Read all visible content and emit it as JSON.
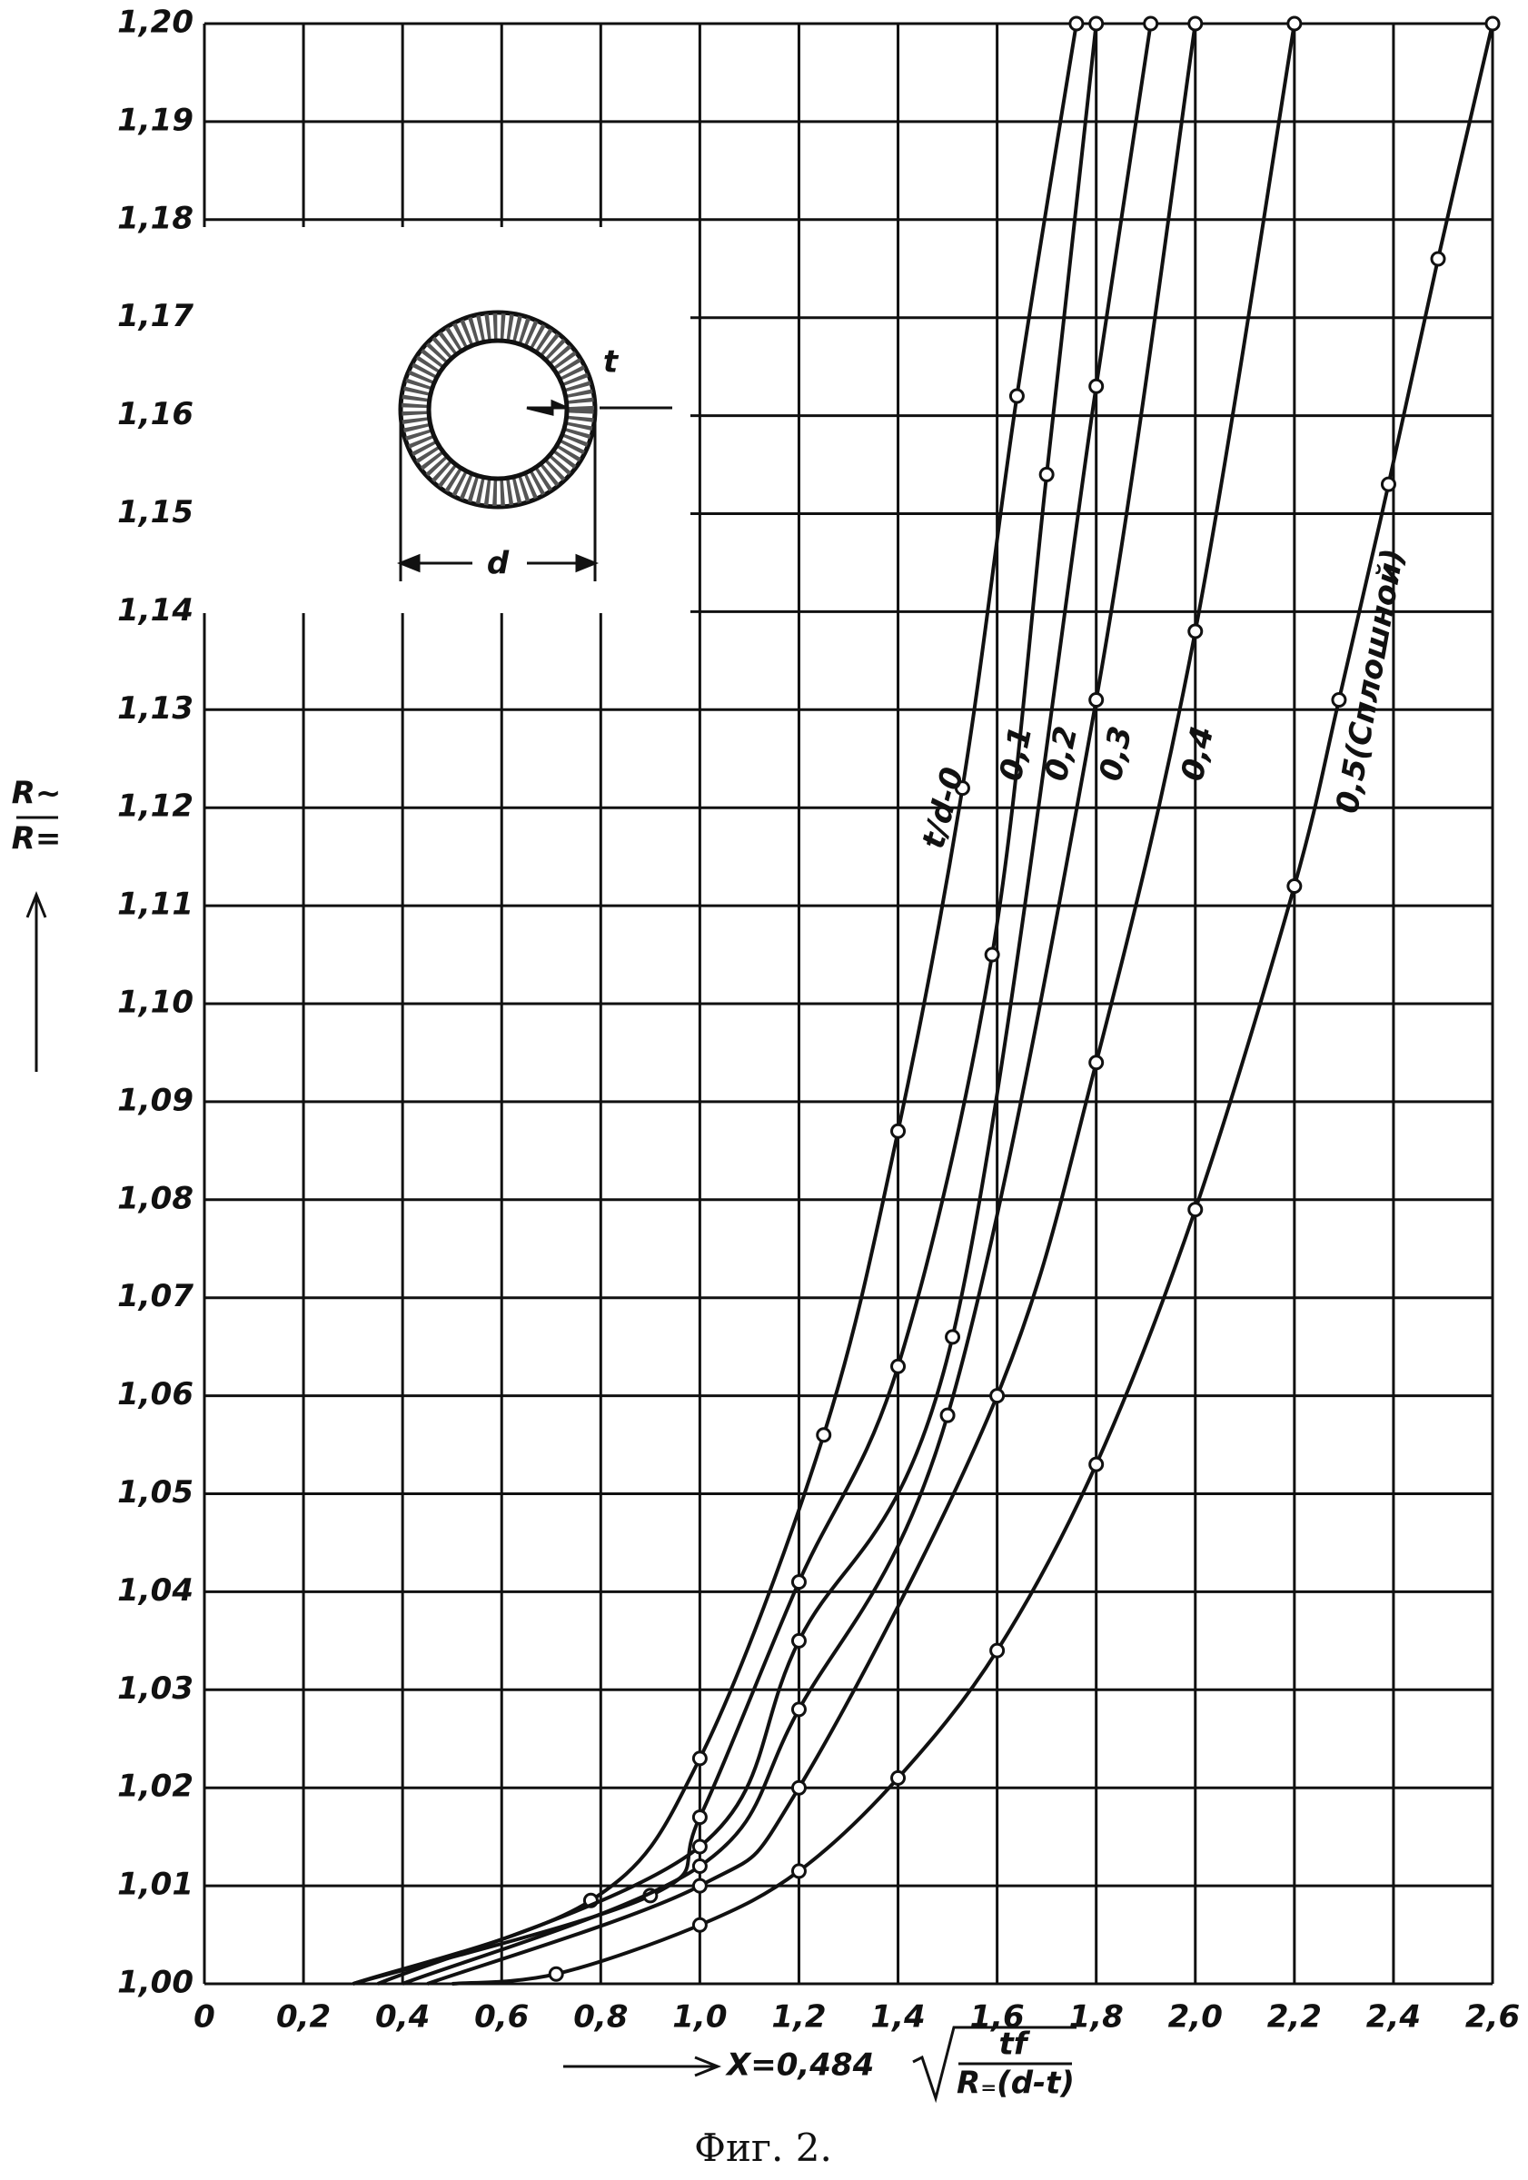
{
  "chart_data": {
    "type": "line",
    "caption": "Фиг. 2.",
    "y_label": {
      "numerator": "R~",
      "denominator": "R="
    },
    "x_label": {
      "prefix": "X=0,484",
      "numerator": "tf",
      "denominator": "R₌(d-t)"
    },
    "inset": {
      "thickness": "t",
      "diameter": "d"
    },
    "color": "#111111",
    "grid": true,
    "xlim": [
      0,
      2.6
    ],
    "xticks": [
      0,
      {
        "value": 0.2,
        "label": "0,2"
      },
      {
        "value": 0.4,
        "label": "0,4"
      },
      {
        "value": 0.6,
        "label": "0,6"
      },
      {
        "value": 0.8,
        "label": "0,8"
      },
      {
        "value": 1.0,
        "label": "1,0"
      },
      {
        "value": 1.2,
        "label": "1,2"
      },
      {
        "value": 1.4,
        "label": "1,4"
      },
      {
        "value": 1.6,
        "label": "1,6"
      },
      {
        "value": 1.8,
        "label": "1,8"
      },
      {
        "value": 2.0,
        "label": "2,0"
      },
      {
        "value": 2.2,
        "label": "2,2"
      },
      {
        "value": 2.4,
        "label": "2,4"
      },
      {
        "value": 2.6,
        "label": "2,6"
      }
    ],
    "ylim": [
      1.0,
      1.2
    ],
    "yticks": [
      {
        "value": 1.0,
        "label": "1,00"
      },
      {
        "value": 1.01,
        "label": "1,01"
      },
      {
        "value": 1.02,
        "label": "1,02"
      },
      {
        "value": 1.03,
        "label": "1,03"
      },
      {
        "value": 1.04,
        "label": "1,04"
      },
      {
        "value": 1.05,
        "label": "1,05"
      },
      {
        "value": 1.06,
        "label": "1,06"
      },
      {
        "value": 1.07,
        "label": "1,07"
      },
      {
        "value": 1.08,
        "label": "1,08"
      },
      {
        "value": 1.09,
        "label": "1,09"
      },
      {
        "value": 1.1,
        "label": "1,10"
      },
      {
        "value": 1.11,
        "label": "1,11"
      },
      {
        "value": 1.12,
        "label": "1,12"
      },
      {
        "value": 1.13,
        "label": "1,13"
      },
      {
        "value": 1.14,
        "label": "1,14"
      },
      {
        "value": 1.15,
        "label": "1,15"
      },
      {
        "value": 1.16,
        "label": "1,16"
      },
      {
        "value": 1.17,
        "label": "1,17"
      },
      {
        "value": 1.18,
        "label": "1,18"
      },
      {
        "value": 1.19,
        "label": "1,19"
      },
      {
        "value": 1.2,
        "label": "1,20"
      }
    ],
    "series": [
      {
        "name": "t/d-0",
        "x": [
          0.3,
          0.78,
          1.0,
          1.25,
          1.4,
          1.53,
          1.64,
          1.76
        ],
        "values": [
          1.0,
          1.0085,
          1.023,
          1.056,
          1.087,
          1.122,
          1.162,
          1.2
        ]
      },
      {
        "name": "0,1",
        "x": [
          0.3,
          0.9,
          1.0,
          1.2,
          1.4,
          1.59,
          1.7,
          1.8
        ],
        "values": [
          1.0,
          1.009,
          1.017,
          1.041,
          1.063,
          1.105,
          1.154,
          1.2
        ]
      },
      {
        "name": "0,2",
        "x": [
          0.35,
          1.0,
          1.2,
          1.51,
          1.8,
          1.91
        ],
        "values": [
          1.0,
          1.014,
          1.035,
          1.066,
          1.163,
          1.2
        ]
      },
      {
        "name": "0,3",
        "x": [
          0.4,
          1.0,
          1.2,
          1.5,
          1.8,
          2.0
        ],
        "values": [
          1.0,
          1.012,
          1.028,
          1.058,
          1.131,
          1.2
        ]
      },
      {
        "name": "0,4",
        "x": [
          0.45,
          1.0,
          1.2,
          1.6,
          1.8,
          2.0,
          2.2
        ],
        "values": [
          1.0,
          1.01,
          1.02,
          1.06,
          1.094,
          1.138,
          1.2
        ]
      },
      {
        "name": "0,5(Сплошной)",
        "x": [
          0.5,
          0.71,
          1.0,
          1.2,
          1.4,
          1.6,
          1.8,
          2.0,
          2.2,
          2.29,
          2.39,
          2.49,
          2.6
        ],
        "values": [
          1.0,
          1.001,
          1.006,
          1.0115,
          1.021,
          1.034,
          1.053,
          1.079,
          1.112,
          1.131,
          1.153,
          1.176,
          1.2
        ]
      }
    ]
  }
}
